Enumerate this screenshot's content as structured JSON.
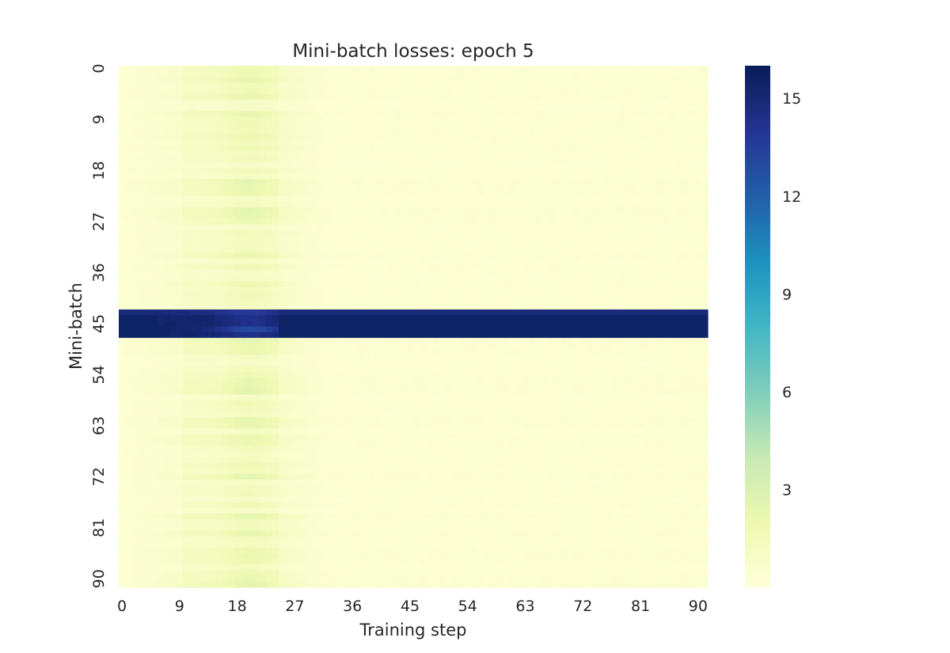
{
  "chart_data": {
    "type": "heatmap",
    "title": "Mini-batch losses: epoch 5",
    "xlabel": "Training step",
    "ylabel": "Mini-batch",
    "x_ticks": [
      "0",
      "9",
      "18",
      "27",
      "36",
      "45",
      "54",
      "63",
      "72",
      "81",
      "90"
    ],
    "y_ticks": [
      "0",
      "9",
      "18",
      "27",
      "36",
      "45",
      "54",
      "63",
      "72",
      "81",
      "90"
    ],
    "n_rows": 92,
    "n_cols": 92,
    "colormap": "YlGnBu",
    "vmin": 0,
    "vmax": 16,
    "colorbar_ticks": [
      "3",
      "6",
      "9",
      "12",
      "15"
    ],
    "description_of_values": {
      "background_loss": 0.3,
      "peak_band_steps": [
        10,
        24
      ],
      "peak_band_max_loss": 3.5,
      "outlier_rows": [
        43,
        44,
        45,
        46,
        47
      ],
      "outlier_row_loss": 15.5
    }
  }
}
